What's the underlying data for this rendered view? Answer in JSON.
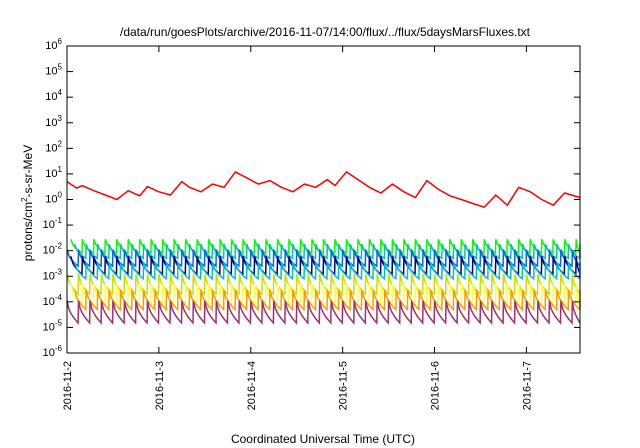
{
  "chart_data": {
    "type": "line",
    "title": "/data/run/goesPlots/archive/2016-11-07/14:00/flux/../flux/5daysMarsFluxes.txt",
    "xlabel": "Coordinated Universal Time (UTC)",
    "ylabel": {
      "prefix": "protons/cm",
      "sup": "2",
      "suffix": "-s-sr-MeV"
    },
    "yscale": "log",
    "ylim": [
      1e-06,
      1000000.0
    ],
    "xlim": [
      "2016-11-02T00:00",
      "2016-11-07T14:00"
    ],
    "x_ticks": [
      "2016-11-2",
      "2016-11-3",
      "2016-11-4",
      "2016-11-5",
      "2016-11-6",
      "2016-11-7"
    ],
    "y_ticks": [
      {
        "base": "10",
        "exp": "-6"
      },
      {
        "base": "10",
        "exp": "-5"
      },
      {
        "base": "10",
        "exp": "-4"
      },
      {
        "base": "10",
        "exp": "-3"
      },
      {
        "base": "10",
        "exp": "-2"
      },
      {
        "base": "10",
        "exp": "-1"
      },
      {
        "base": "10",
        "exp": "0"
      },
      {
        "base": "10",
        "exp": "1"
      },
      {
        "base": "10",
        "exp": "2"
      },
      {
        "base": "10",
        "exp": "3"
      },
      {
        "base": "10",
        "exp": "4"
      },
      {
        "base": "10",
        "exp": "5"
      },
      {
        "base": "10",
        "exp": "6"
      }
    ],
    "grid": false,
    "legend": "none",
    "series": [
      {
        "color": "#ff0000",
        "x": [
          "2016-11-02T00:00",
          "2016-11-02T02:30",
          "2016-11-02T04:00",
          "2016-11-02T07:00",
          "2016-11-02T10:00",
          "2016-11-02T13:00",
          "2016-11-02T16:00",
          "2016-11-02T19:00",
          "2016-11-02T21:00",
          "2016-11-03T00:00",
          "2016-11-03T03:00",
          "2016-11-03T06:00",
          "2016-11-03T08:00",
          "2016-11-03T11:00",
          "2016-11-03T14:00",
          "2016-11-03T17:00",
          "2016-11-03T20:00",
          "2016-11-03T23:00",
          "2016-11-04T02:00",
          "2016-11-04T05:00",
          "2016-11-04T08:00",
          "2016-11-04T11:00",
          "2016-11-04T14:00",
          "2016-11-04T17:00",
          "2016-11-04T20:00",
          "2016-11-04T22:00",
          "2016-11-05T01:00",
          "2016-11-05T04:00",
          "2016-11-05T07:00",
          "2016-11-05T10:00",
          "2016-11-05T13:00",
          "2016-11-05T16:00",
          "2016-11-05T19:00",
          "2016-11-05T22:00",
          "2016-11-06T01:00",
          "2016-11-06T04:00",
          "2016-11-06T07:00",
          "2016-11-06T10:00",
          "2016-11-06T13:00",
          "2016-11-06T16:00",
          "2016-11-06T19:00",
          "2016-11-06T22:00",
          "2016-11-07T01:00",
          "2016-11-07T04:00",
          "2016-11-07T07:00",
          "2016-11-07T10:00",
          "2016-11-07T14:00"
        ],
        "values": [
          5,
          2.8,
          3.5,
          2.2,
          1.5,
          1.0,
          2.2,
          1.4,
          3.2,
          2.0,
          1.5,
          5.0,
          3.0,
          2.0,
          4.0,
          3.0,
          12.0,
          7.0,
          4.0,
          5.5,
          3.0,
          2.0,
          4.0,
          3.0,
          6.0,
          3.5,
          12.0,
          6.0,
          3.0,
          1.8,
          4.0,
          2.0,
          1.2,
          5.5,
          2.5,
          1.4,
          1.0,
          0.7,
          0.5,
          1.5,
          0.6,
          3.0,
          2.0,
          1.0,
          0.6,
          1.8,
          1.2
        ]
      },
      {
        "color": "#00ff00",
        "base": 0.028,
        "low": 0.008,
        "period_hours": 3
      },
      {
        "color": "#00c8a0",
        "base": 0.018,
        "low": 0.005,
        "period_hours": 3
      },
      {
        "color": "#0066ff",
        "base": 0.011,
        "low": 0.0025,
        "period_hours": 3
      },
      {
        "color": "#00008b",
        "base": 0.006,
        "low": 0.0012,
        "period_hours": 3
      },
      {
        "color": "#00c0d0",
        "base": 0.0035,
        "low": 0.0008,
        "period_hours": 3
      },
      {
        "color": "#c8e000",
        "base": 0.0012,
        "low": 0.0002,
        "period_hours": 3
      },
      {
        "color": "#ffff40",
        "base": 0.0005,
        "low": 8e-05,
        "period_hours": 3
      },
      {
        "color": "#ff9900",
        "base": 0.0003,
        "low": 5e-05,
        "period_hours": 3
      },
      {
        "color": "#a03070",
        "base": 0.00011,
        "low": 1.5e-05,
        "period_hours": 3
      }
    ]
  }
}
